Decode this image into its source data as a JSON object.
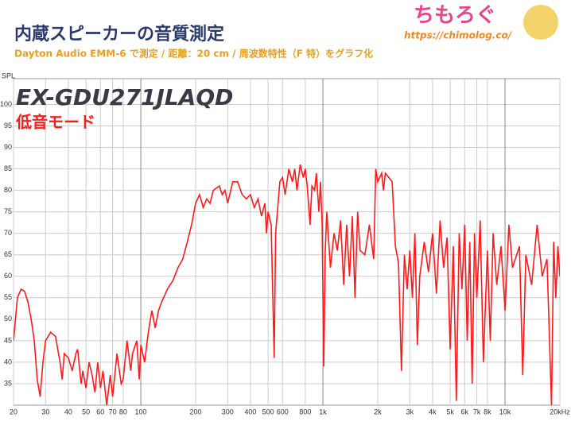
{
  "chart_data": {
    "type": "line",
    "log_x": true,
    "title": "内蔵スピーカーの音質測定",
    "subtitle": "Dayton Audio EMM-6 で測定 / 距離：20 cm / 周波数特性（F 特）をグラフ化",
    "logo": "ちもろぐ",
    "url": "https://chimolog.co/",
    "annotations": [
      "EX-GDU271JLAQD",
      "低音モード"
    ],
    "y_label": "SPL",
    "xlim": [
      20,
      20000
    ],
    "ylim": [
      30,
      106
    ],
    "xticks": [
      20,
      30,
      40,
      50,
      60,
      70,
      80,
      100,
      200,
      300,
      400,
      500,
      600,
      800,
      {
        "value": 1000,
        "label": "1k"
      },
      {
        "value": 2000,
        "label": "2k"
      },
      {
        "value": 3000,
        "label": "3k"
      },
      {
        "value": 4000,
        "label": "4k"
      },
      {
        "value": 5000,
        "label": "5k"
      },
      {
        "value": 6000,
        "label": "6k"
      },
      {
        "value": 7000,
        "label": "7k"
      },
      {
        "value": 8000,
        "label": "8k"
      },
      {
        "value": 10000,
        "label": "10k"
      },
      {
        "value": 20000,
        "label": "20kHz"
      }
    ],
    "yticks": [
      35,
      40,
      45,
      50,
      55,
      60,
      65,
      70,
      75,
      80,
      85,
      90,
      95,
      100
    ],
    "grid": true,
    "series": [
      {
        "name": "EX-GDU271JLAQD",
        "color": "#ff1a1a",
        "x": [
          20,
          21,
          22,
          23,
          24,
          25,
          26,
          27,
          28,
          29,
          30,
          32,
          34,
          36,
          37,
          38,
          40,
          42,
          44,
          45,
          47,
          48,
          50,
          52,
          54,
          56,
          58,
          60,
          62,
          65,
          68,
          70,
          74,
          78,
          80,
          84,
          88,
          90,
          95,
          98,
          100,
          105,
          110,
          115,
          120,
          125,
          130,
          140,
          150,
          160,
          170,
          180,
          190,
          200,
          210,
          220,
          230,
          240,
          250,
          270,
          280,
          290,
          300,
          320,
          340,
          360,
          380,
          400,
          420,
          440,
          460,
          480,
          490,
          500,
          520,
          540,
          550,
          580,
          600,
          620,
          650,
          680,
          700,
          720,
          750,
          780,
          800,
          820,
          850,
          870,
          900,
          920,
          950,
          970,
          990,
          1010,
          1030,
          1050,
          1100,
          1150,
          1200,
          1250,
          1300,
          1350,
          1400,
          1450,
          1500,
          1550,
          1600,
          1700,
          1800,
          1900,
          1950,
          2000,
          2100,
          2150,
          2200,
          2300,
          2400,
          2500,
          2600,
          2700,
          2800,
          2900,
          3000,
          3100,
          3200,
          3300,
          3400,
          3600,
          3800,
          4000,
          4200,
          4400,
          4600,
          4800,
          5000,
          5200,
          5400,
          5600,
          5800,
          6000,
          6200,
          6400,
          6600,
          6800,
          7000,
          7300,
          7600,
          8000,
          8300,
          8600,
          9000,
          9500,
          10000,
          10500,
          11000,
          12000,
          12500,
          13000,
          14000,
          15000,
          16000,
          17000,
          18000,
          18500,
          19000,
          19500,
          20000
        ],
        "values": [
          45,
          55,
          57,
          56.5,
          54,
          50,
          45,
          36,
          32,
          40,
          45,
          47,
          46,
          40,
          36,
          42,
          41,
          38,
          42,
          43,
          35,
          38,
          34,
          40,
          37,
          33,
          40,
          34,
          38,
          30,
          37,
          32,
          42,
          35,
          36,
          45,
          38,
          42,
          45,
          36,
          44,
          40,
          47,
          52,
          48,
          52,
          54,
          57,
          59,
          62,
          64,
          68,
          72,
          77,
          79,
          76,
          78,
          77,
          80,
          81,
          79,
          80,
          77,
          82,
          82,
          79,
          78,
          79,
          76,
          78,
          74,
          77,
          70,
          75,
          72,
          41,
          70,
          82,
          83,
          79,
          85,
          82,
          85,
          80,
          86,
          83,
          85,
          81,
          72,
          81,
          80,
          84,
          75,
          82,
          72,
          39,
          66,
          75,
          62,
          70,
          66,
          73,
          58,
          72,
          60,
          74,
          55,
          75,
          66,
          65,
          72,
          64,
          85,
          82,
          84,
          80,
          84,
          83,
          82,
          67,
          63,
          38,
          65,
          57,
          66,
          55,
          70,
          44,
          60,
          68,
          61,
          70,
          56,
          73,
          62,
          69,
          43,
          67,
          31,
          70,
          57,
          72,
          45,
          68,
          35,
          70,
          55,
          73,
          40,
          66,
          45,
          70,
          58,
          67,
          52,
          72,
          62,
          67,
          37,
          65,
          58,
          72,
          60,
          64,
          30,
          68,
          55,
          67,
          60
        ]
      }
    ]
  }
}
